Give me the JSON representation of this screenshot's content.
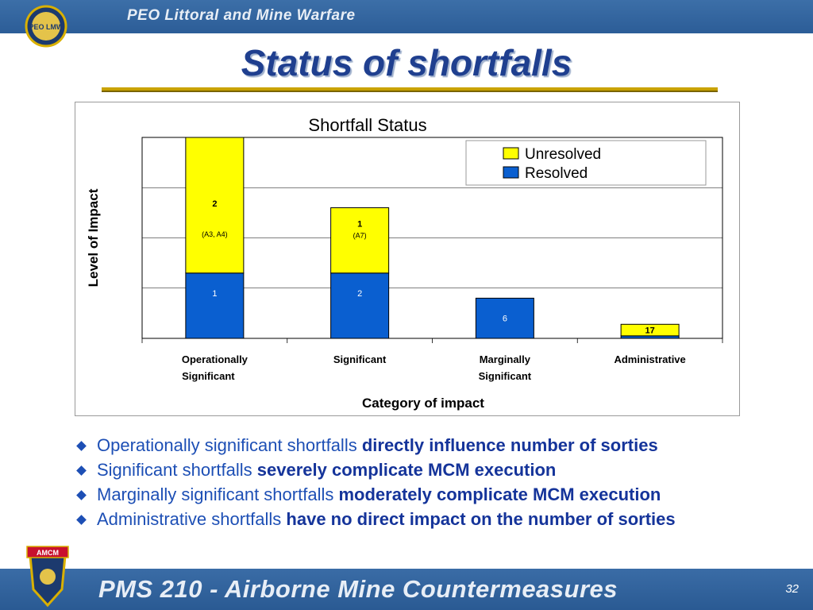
{
  "header": {
    "org": "PEO Littoral and Mine Warfare",
    "logo_text": "PEO LMW"
  },
  "slide": {
    "title": "Status of shortfalls"
  },
  "chart_data": {
    "type": "bar",
    "stacked": true,
    "title": "Shortfall Status",
    "xlabel": "Category of impact",
    "ylabel": "Level of Impact",
    "categories": [
      [
        "Operationally",
        "Significant"
      ],
      [
        "Significant"
      ],
      [
        "Marginally",
        "Significant"
      ],
      [
        "Administrative"
      ]
    ],
    "series": [
      {
        "name": "Resolved",
        "color": "#0a5fd0",
        "levels": [
          1.3,
          1.3,
          0.8,
          0.05
        ],
        "labels": [
          "1",
          "2",
          "6",
          ""
        ]
      },
      {
        "name": "Unresolved",
        "color": "#ffff00",
        "levels": [
          2.7,
          1.3,
          0,
          0.23
        ],
        "labels": [
          "2",
          "1",
          "",
          "17"
        ],
        "notes": [
          "(A3, A4)",
          "(A7)",
          "",
          ""
        ]
      }
    ],
    "ylim": [
      0,
      4
    ],
    "grid": true,
    "legend": "top-right"
  },
  "bullets": [
    {
      "normal": "Operationally significant shortfalls ",
      "bold": "directly influence number of sorties"
    },
    {
      "normal": "Significant shortfalls ",
      "bold": "severely complicate MCM execution"
    },
    {
      "normal": "Marginally significant shortfalls ",
      "bold": "moderately complicate MCM execution"
    },
    {
      "normal": "Administrative shortfalls ",
      "bold": "have no direct impact on the number of sorties"
    }
  ],
  "footer": {
    "program": "PMS 210 - Airborne Mine Countermeasures",
    "page": "32",
    "badge_text": "AMCM"
  }
}
